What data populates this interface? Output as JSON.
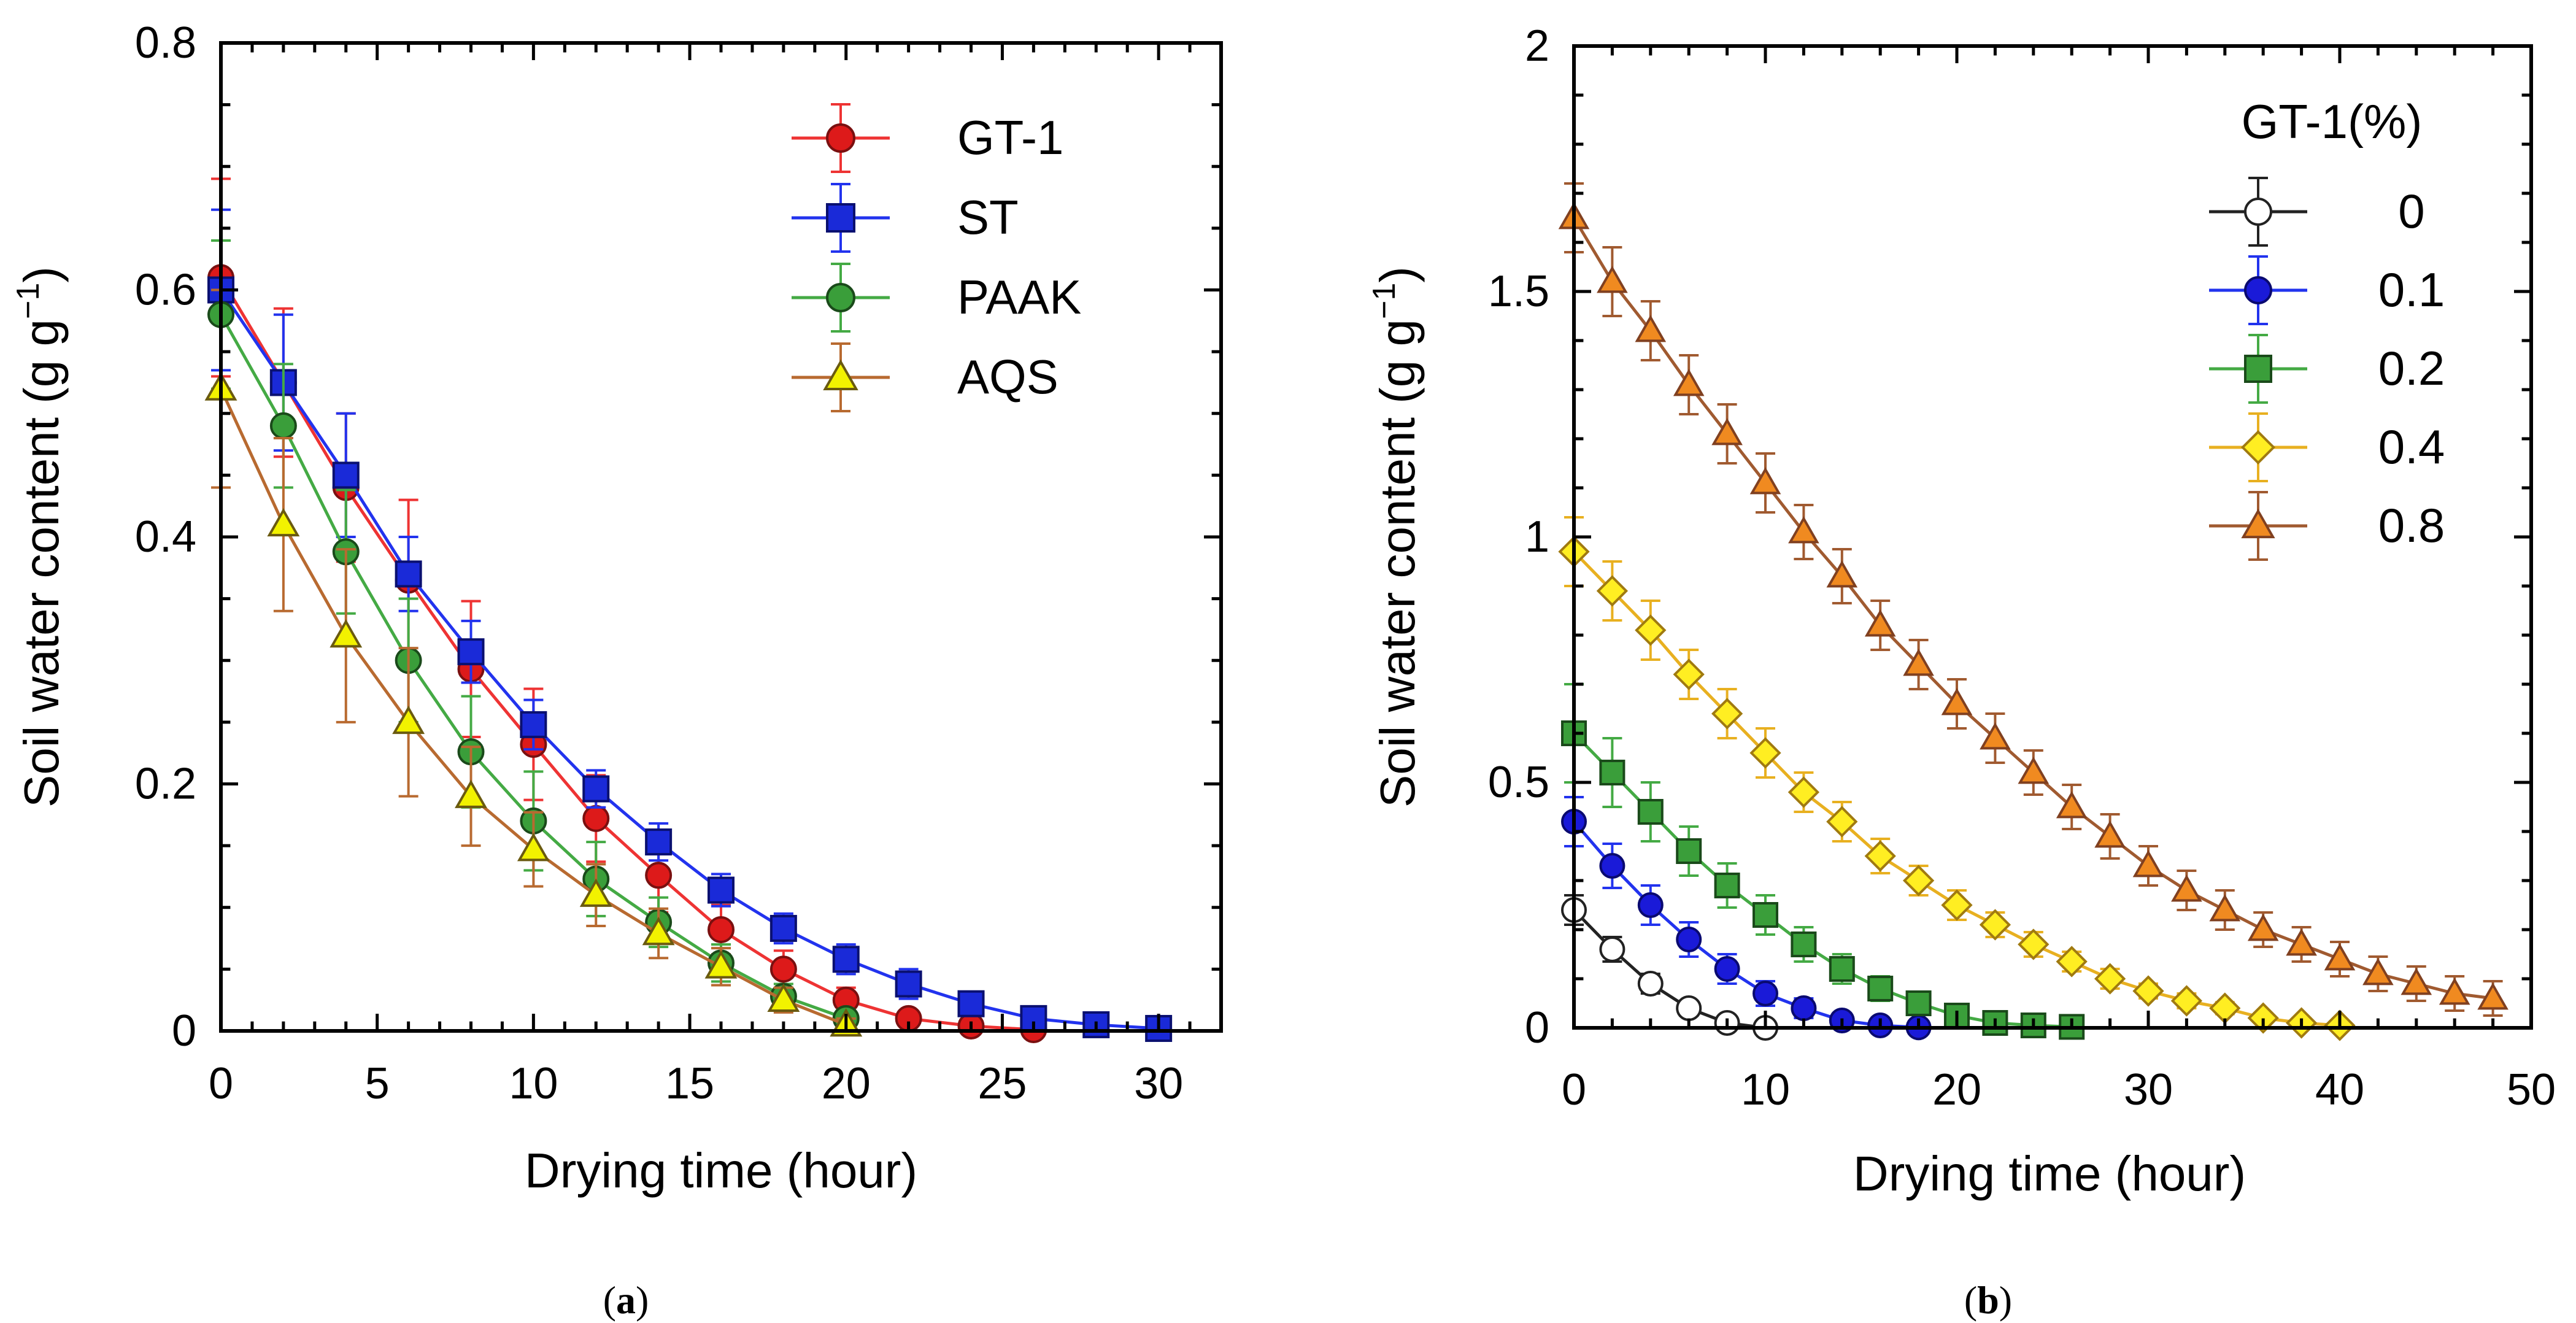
{
  "chart_data": [
    {
      "type": "line",
      "panel_label": "a",
      "xlabel": "Drying time (hour)",
      "ylabel_main": "Soil water content (g g",
      "ylabel_sup": "−1",
      "ylabel_close": ")",
      "xlim": [
        0,
        32
      ],
      "ylim": [
        0,
        0.8
      ],
      "xticks": [
        0,
        5,
        10,
        15,
        20,
        25,
        30
      ],
      "xtick_labels": [
        "0",
        "5",
        "10",
        "15",
        "20",
        "25",
        "30"
      ],
      "yticks": [
        0,
        0.2,
        0.4,
        0.6,
        0.8
      ],
      "ytick_labels": [
        "0",
        "0.2",
        "0.4",
        "0.6",
        "0.8"
      ],
      "legend_position": "top-right",
      "series": [
        {
          "name": "GT-1",
          "marker": "circle",
          "line_color": "#ee3333",
          "fill": "#dd1a1a",
          "stroke": "#7a1010",
          "x": [
            0,
            2,
            4,
            6,
            8,
            10,
            12,
            14,
            16,
            18,
            20,
            22,
            24,
            26
          ],
          "y": [
            0.61,
            0.525,
            0.44,
            0.365,
            0.293,
            0.232,
            0.172,
            0.126,
            0.082,
            0.05,
            0.025,
            0.01,
            0.004,
            0.001
          ],
          "err": [
            0.08,
            0.06,
            0.06,
            0.065,
            0.055,
            0.045,
            0.035,
            0.03,
            0.02,
            0.015,
            0.01,
            0.006,
            0.004,
            0.003
          ]
        },
        {
          "name": "ST",
          "marker": "square",
          "line_color": "#2233ee",
          "fill": "#1a2ad8",
          "stroke": "#0a1070",
          "x": [
            0,
            2,
            4,
            6,
            8,
            10,
            12,
            14,
            16,
            18,
            20,
            22,
            24,
            26,
            28,
            30
          ],
          "y": [
            0.6,
            0.525,
            0.45,
            0.37,
            0.307,
            0.248,
            0.196,
            0.153,
            0.114,
            0.083,
            0.058,
            0.038,
            0.022,
            0.01,
            0.005,
            0.002
          ],
          "err": [
            0.065,
            0.055,
            0.05,
            0.03,
            0.025,
            0.02,
            0.015,
            0.015,
            0.013,
            0.012,
            0.012,
            0.012,
            0.008,
            0.005,
            0.004,
            0.003
          ]
        },
        {
          "name": "PAAK",
          "marker": "circle",
          "line_color": "#44aa44",
          "fill": "#3a9e3a",
          "stroke": "#1a4a1a",
          "x": [
            0,
            2,
            4,
            6,
            8,
            10,
            12,
            14,
            16,
            18,
            20
          ],
          "y": [
            0.58,
            0.49,
            0.388,
            0.3,
            0.226,
            0.17,
            0.123,
            0.088,
            0.055,
            0.028,
            0.01
          ],
          "err": [
            0.06,
            0.05,
            0.05,
            0.05,
            0.045,
            0.04,
            0.03,
            0.02,
            0.015,
            0.01,
            0.007
          ]
        },
        {
          "name": "AQS",
          "marker": "triangle",
          "line_color": "#b86a30",
          "fill": "#f2f200",
          "stroke": "#6a5a10",
          "x": [
            0,
            2,
            4,
            6,
            8,
            10,
            12,
            14,
            16,
            18,
            20
          ],
          "y": [
            0.52,
            0.41,
            0.32,
            0.25,
            0.19,
            0.147,
            0.11,
            0.079,
            0.052,
            0.025,
            0.005
          ],
          "err": [
            0.08,
            0.07,
            0.07,
            0.06,
            0.04,
            0.03,
            0.025,
            0.02,
            0.015,
            0.01,
            0.005
          ]
        }
      ]
    },
    {
      "type": "line",
      "panel_label": "b",
      "xlabel": "Drying time (hour)",
      "ylabel_main": "Soil water content (g g",
      "ylabel_sup": "−1",
      "ylabel_close": ")",
      "xlim": [
        0,
        50
      ],
      "ylim": [
        0,
        2
      ],
      "xticks": [
        0,
        10,
        20,
        30,
        40,
        50
      ],
      "xtick_labels": [
        "0",
        "10",
        "20",
        "30",
        "40",
        "50"
      ],
      "yticks": [
        0,
        0.5,
        1,
        1.5,
        2
      ],
      "ytick_labels": [
        "0",
        "0.5",
        "1",
        "1.5",
        "2"
      ],
      "legend_position": "top-right",
      "legend_title": "GT-1(%)",
      "series": [
        {
          "name": "0",
          "marker": "circle",
          "line_color": "#222222",
          "fill": "#ffffff",
          "stroke": "#222222",
          "x": [
            0,
            2,
            4,
            6,
            8,
            10
          ],
          "y": [
            0.24,
            0.16,
            0.09,
            0.04,
            0.01,
            0.0
          ],
          "err": [
            0.03,
            0.025,
            0.02,
            0.015,
            0.01,
            0.005
          ]
        },
        {
          "name": "0.1",
          "marker": "circle",
          "line_color": "#2233ee",
          "fill": "#1a1ad8",
          "stroke": "#0a0a70",
          "x": [
            0,
            2,
            4,
            6,
            8,
            10,
            12,
            14,
            16,
            18
          ],
          "y": [
            0.42,
            0.33,
            0.25,
            0.18,
            0.12,
            0.07,
            0.04,
            0.015,
            0.005,
            0.001
          ],
          "err": [
            0.05,
            0.045,
            0.04,
            0.035,
            0.03,
            0.025,
            0.02,
            0.015,
            0.01,
            0.005
          ]
        },
        {
          "name": "0.2",
          "marker": "square",
          "line_color": "#44aa44",
          "fill": "#3a9e3a",
          "stroke": "#1a4a1a",
          "x": [
            0,
            2,
            4,
            6,
            8,
            10,
            12,
            14,
            16,
            18,
            20,
            22,
            24,
            26
          ],
          "y": [
            0.6,
            0.52,
            0.44,
            0.36,
            0.29,
            0.23,
            0.17,
            0.12,
            0.08,
            0.05,
            0.025,
            0.01,
            0.005,
            0.002
          ],
          "err": [
            0.1,
            0.07,
            0.06,
            0.05,
            0.045,
            0.04,
            0.035,
            0.03,
            0.025,
            0.02,
            0.015,
            0.01,
            0.008,
            0.005
          ]
        },
        {
          "name": "0.4",
          "marker": "diamond",
          "line_color": "#e8b020",
          "fill": "#ffee22",
          "stroke": "#a07a10",
          "x": [
            0,
            2,
            4,
            6,
            8,
            10,
            12,
            14,
            16,
            18,
            20,
            22,
            24,
            26,
            28,
            30,
            32,
            34,
            36,
            38,
            40
          ],
          "y": [
            0.97,
            0.89,
            0.81,
            0.72,
            0.64,
            0.56,
            0.48,
            0.42,
            0.35,
            0.3,
            0.25,
            0.21,
            0.17,
            0.135,
            0.1,
            0.075,
            0.055,
            0.04,
            0.02,
            0.01,
            0.005
          ],
          "err": [
            0.07,
            0.06,
            0.06,
            0.05,
            0.05,
            0.05,
            0.04,
            0.04,
            0.035,
            0.03,
            0.03,
            0.025,
            0.025,
            0.02,
            0.02,
            0.015,
            0.015,
            0.012,
            0.01,
            0.01,
            0.008
          ]
        },
        {
          "name": "0.8",
          "marker": "triangle",
          "line_color": "#a05a30",
          "fill": "#f08a20",
          "stroke": "#804020",
          "x": [
            0,
            2,
            4,
            6,
            8,
            10,
            12,
            14,
            16,
            18,
            20,
            22,
            24,
            26,
            28,
            30,
            32,
            34,
            36,
            38,
            40,
            42,
            44,
            46,
            48
          ],
          "y": [
            1.65,
            1.52,
            1.42,
            1.31,
            1.21,
            1.11,
            1.01,
            0.92,
            0.82,
            0.74,
            0.66,
            0.59,
            0.52,
            0.45,
            0.39,
            0.33,
            0.28,
            0.24,
            0.2,
            0.17,
            0.14,
            0.11,
            0.09,
            0.07,
            0.06
          ],
          "err": [
            0.07,
            0.07,
            0.06,
            0.06,
            0.06,
            0.06,
            0.055,
            0.055,
            0.05,
            0.05,
            0.05,
            0.05,
            0.045,
            0.045,
            0.045,
            0.04,
            0.04,
            0.04,
            0.035,
            0.035,
            0.035,
            0.035,
            0.035,
            0.035,
            0.035
          ]
        }
      ]
    }
  ]
}
